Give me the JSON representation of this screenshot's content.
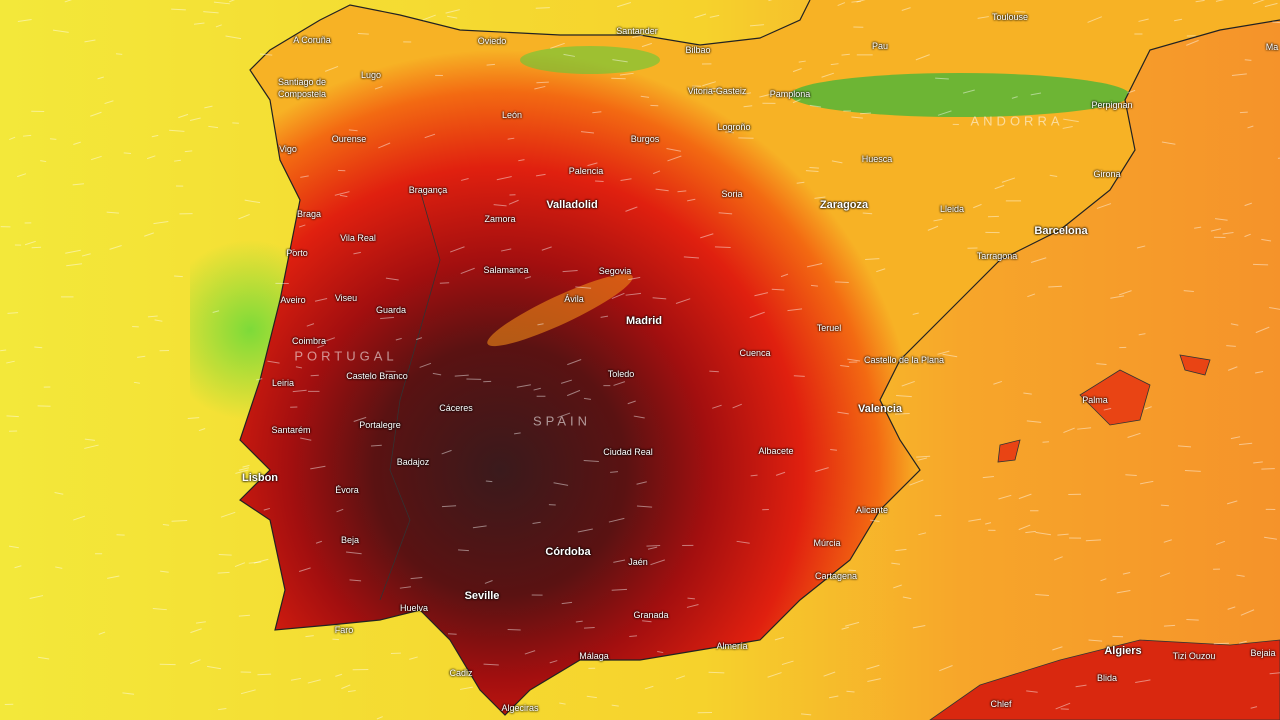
{
  "map": {
    "cities": [
      "A Coruña",
      "Oviedo",
      "Santander",
      "Bilbao",
      "Toulouse",
      "Pau",
      "Ma",
      "Lugo",
      "Santiago de Compostela",
      "Vitoria-Gasteiz",
      "Pamplona",
      "Perpignan",
      "León",
      "Logroño",
      "Ourense",
      "Burgos",
      "Vigo",
      "Huesca",
      "Palencia",
      "Girona",
      "Bragança",
      "Soria",
      "Valladolid",
      "Zaragoza",
      "Lleida",
      "Braga",
      "Zamora",
      "Barcelona",
      "Vila Real",
      "Porto",
      "Tarragona",
      "Segovia",
      "Salamanca",
      "Ávila",
      "Aveiro",
      "Viseu",
      "Guarda",
      "Madrid",
      "Teruel",
      "Coimbra",
      "Cuenca",
      "Castello de la Plana",
      "Castelo Branco",
      "Toledo",
      "Leiria",
      "Palma",
      "Cáceres",
      "Valencia",
      "Portalegre",
      "Santarém",
      "Ciudad Real",
      "Albacete",
      "Badajoz",
      "Lisbon",
      "Évora",
      "Alicante",
      "Beja",
      "Múrcia",
      "Córdoba",
      "Jaén",
      "Cartagena",
      "Seville",
      "Huelva",
      "Granada",
      "Faro",
      "Almería",
      "Algiers",
      "Málaga",
      "Tizi Ouzou",
      "Bejaia",
      "Cadiz",
      "Blida",
      "Chlef",
      "Algeciras"
    ],
    "countries": [
      "PORTUGAL",
      "SPAIN",
      "ANDORRA"
    ]
  }
}
